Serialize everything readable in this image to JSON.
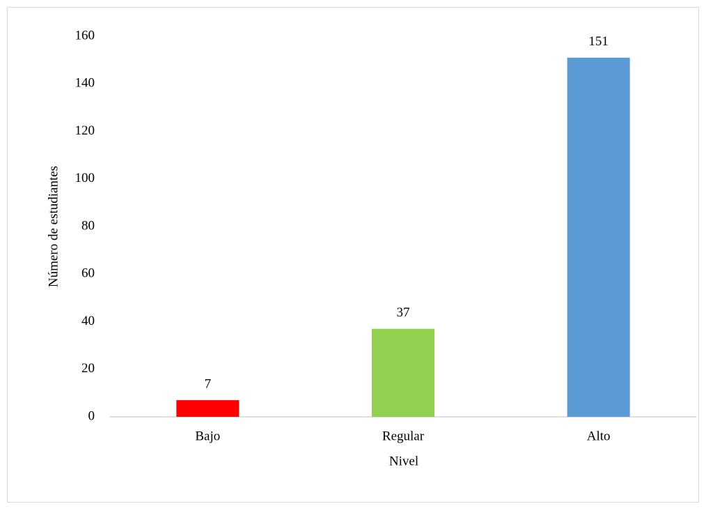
{
  "chart_data": {
    "type": "bar",
    "categories": [
      "Bajo",
      "Regular",
      "Alto"
    ],
    "values": [
      7,
      37,
      151
    ],
    "colors": [
      "#ff0000",
      "#92d050",
      "#5b9bd5"
    ],
    "xlabel": "Nivel",
    "ylabel": "Número de estudiantes",
    "ylim": [
      0,
      160
    ],
    "yticks": [
      0,
      20,
      40,
      60,
      80,
      100,
      120,
      140,
      160
    ],
    "grid": false
  }
}
